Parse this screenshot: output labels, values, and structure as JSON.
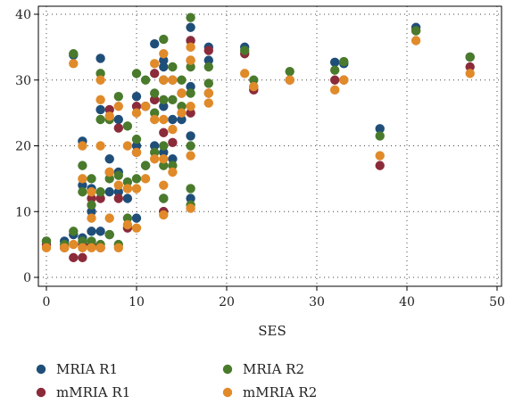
{
  "chart_data": {
    "type": "scatter",
    "xlabel": "SES",
    "ylabel": "",
    "xlim": [
      0,
      50
    ],
    "ylim": [
      0,
      40
    ],
    "x_ticks": [
      0,
      10,
      20,
      30,
      40,
      50
    ],
    "y_ticks": [
      0,
      10,
      20,
      30,
      40
    ],
    "grid": "dotted horizontal",
    "legend_position": "bottom",
    "series": [
      {
        "name": "MRIA R1",
        "color": "#1f4e79",
        "points": [
          [
            0,
            5.5
          ],
          [
            2,
            5.5
          ],
          [
            3,
            33.8
          ],
          [
            3,
            6.5
          ],
          [
            4,
            14
          ],
          [
            4,
            20.7
          ],
          [
            4,
            6
          ],
          [
            5,
            7
          ],
          [
            5,
            13.5
          ],
          [
            5,
            10
          ],
          [
            6,
            33.3
          ],
          [
            6,
            25.5
          ],
          [
            6,
            7
          ],
          [
            7,
            18
          ],
          [
            7,
            13
          ],
          [
            7,
            6.5
          ],
          [
            8,
            24
          ],
          [
            8,
            16
          ],
          [
            8,
            13
          ],
          [
            9,
            12
          ],
          [
            10,
            27.5
          ],
          [
            10,
            20
          ],
          [
            10,
            9
          ],
          [
            11,
            26
          ],
          [
            11,
            17
          ],
          [
            12,
            35.5
          ],
          [
            12,
            27
          ],
          [
            12,
            20
          ],
          [
            13,
            33
          ],
          [
            13,
            32
          ],
          [
            13,
            26
          ],
          [
            13,
            19
          ],
          [
            13,
            12
          ],
          [
            13,
            10
          ],
          [
            14,
            30
          ],
          [
            14,
            24
          ],
          [
            14,
            18
          ],
          [
            15,
            24
          ],
          [
            16,
            38
          ],
          [
            16,
            36
          ],
          [
            16,
            29
          ],
          [
            16,
            21.5
          ],
          [
            16,
            12
          ],
          [
            18,
            35
          ],
          [
            18,
            33
          ],
          [
            22,
            35
          ],
          [
            23,
            29
          ],
          [
            32,
            32.7
          ],
          [
            33,
            32.5
          ],
          [
            37,
            22.6
          ],
          [
            41,
            38
          ],
          [
            47,
            33.5
          ]
        ]
      },
      {
        "name": "mMRIA R1",
        "color": "#8b2b3a",
        "points": [
          [
            0,
            5
          ],
          [
            2,
            4.5
          ],
          [
            3,
            3
          ],
          [
            4,
            3
          ],
          [
            4,
            5
          ],
          [
            5,
            5
          ],
          [
            5,
            12
          ],
          [
            6,
            12
          ],
          [
            6,
            4.5
          ],
          [
            7,
            16
          ],
          [
            7,
            25.5
          ],
          [
            8,
            12
          ],
          [
            8,
            22.7
          ],
          [
            9,
            7.5
          ],
          [
            10,
            26
          ],
          [
            10,
            19
          ],
          [
            11,
            26
          ],
          [
            12,
            27
          ],
          [
            12,
            31
          ],
          [
            13,
            30
          ],
          [
            13,
            22
          ],
          [
            13,
            10
          ],
          [
            14,
            20.5
          ],
          [
            15,
            28
          ],
          [
            16,
            36
          ],
          [
            16,
            25
          ],
          [
            16,
            33
          ],
          [
            18,
            34.5
          ],
          [
            18,
            28
          ],
          [
            22,
            34
          ],
          [
            23,
            28.5
          ],
          [
            27,
            30
          ],
          [
            32,
            30
          ],
          [
            33,
            30
          ],
          [
            37,
            17
          ],
          [
            41,
            37.5
          ],
          [
            47,
            32
          ]
        ]
      },
      {
        "name": "MRIA R2",
        "color": "#4a7a2c",
        "points": [
          [
            0,
            5.5
          ],
          [
            2,
            5
          ],
          [
            3,
            34
          ],
          [
            3,
            7
          ],
          [
            4,
            17
          ],
          [
            4,
            13
          ],
          [
            4,
            5.5
          ],
          [
            5,
            15
          ],
          [
            5,
            11
          ],
          [
            5,
            5.5
          ],
          [
            6,
            31
          ],
          [
            6,
            24
          ],
          [
            6,
            13
          ],
          [
            6,
            5
          ],
          [
            7,
            24
          ],
          [
            7,
            15
          ],
          [
            7,
            6.5
          ],
          [
            8,
            27.5
          ],
          [
            8,
            15.5
          ],
          [
            8,
            5
          ],
          [
            9,
            23
          ],
          [
            9,
            14.5
          ],
          [
            9,
            9
          ],
          [
            10,
            31
          ],
          [
            10,
            21
          ],
          [
            10,
            15
          ],
          [
            11,
            30
          ],
          [
            11,
            17
          ],
          [
            12,
            28
          ],
          [
            12,
            25
          ],
          [
            12,
            19
          ],
          [
            13,
            36.2
          ],
          [
            13,
            30
          ],
          [
            13,
            27
          ],
          [
            13,
            20
          ],
          [
            13,
            17
          ],
          [
            13,
            12
          ],
          [
            14,
            32
          ],
          [
            14,
            27
          ],
          [
            14,
            17
          ],
          [
            15,
            26
          ],
          [
            15,
            30
          ],
          [
            16,
            39.5
          ],
          [
            16,
            32
          ],
          [
            16,
            28
          ],
          [
            16,
            20
          ],
          [
            16,
            13.5
          ],
          [
            16,
            11
          ],
          [
            18,
            32
          ],
          [
            18,
            29.5
          ],
          [
            22,
            34.5
          ],
          [
            23,
            30
          ],
          [
            27,
            31.3
          ],
          [
            32,
            31.5
          ],
          [
            33,
            32.8
          ],
          [
            37,
            21.5
          ],
          [
            41,
            37.5
          ],
          [
            47,
            33.5
          ]
        ]
      },
      {
        "name": "mMRIA R2",
        "color": "#e08a2a",
        "points": [
          [
            0,
            4.5
          ],
          [
            2,
            4.5
          ],
          [
            3,
            32.5
          ],
          [
            3,
            5
          ],
          [
            4,
            20
          ],
          [
            4,
            15
          ],
          [
            4,
            4.5
          ],
          [
            5,
            13
          ],
          [
            5,
            9
          ],
          [
            5,
            4.5
          ],
          [
            6,
            30
          ],
          [
            6,
            27
          ],
          [
            6,
            20
          ],
          [
            6,
            4.5
          ],
          [
            7,
            24.5
          ],
          [
            7,
            16
          ],
          [
            7,
            9
          ],
          [
            8,
            26
          ],
          [
            8,
            14
          ],
          [
            8,
            4.5
          ],
          [
            9,
            20
          ],
          [
            9,
            13.5
          ],
          [
            9,
            8
          ],
          [
            10,
            25
          ],
          [
            10,
            19
          ],
          [
            10,
            13.5
          ],
          [
            10,
            7.5
          ],
          [
            11,
            26
          ],
          [
            11,
            15
          ],
          [
            12,
            32.5
          ],
          [
            12,
            24
          ],
          [
            12,
            18
          ],
          [
            13,
            34
          ],
          [
            13,
            30
          ],
          [
            13,
            24
          ],
          [
            13,
            18
          ],
          [
            13,
            14
          ],
          [
            13,
            9.5
          ],
          [
            14,
            30
          ],
          [
            14,
            22.5
          ],
          [
            14,
            16
          ],
          [
            15,
            28
          ],
          [
            15,
            25
          ],
          [
            16,
            35
          ],
          [
            16,
            33
          ],
          [
            16,
            26
          ],
          [
            16,
            18.5
          ],
          [
            16,
            10.5
          ],
          [
            18,
            26.5
          ],
          [
            18,
            28
          ],
          [
            22,
            31
          ],
          [
            23,
            29
          ],
          [
            27,
            30
          ],
          [
            32,
            28.5
          ],
          [
            33,
            30
          ],
          [
            37,
            18.5
          ],
          [
            41,
            36
          ],
          [
            47,
            31
          ]
        ]
      }
    ]
  }
}
